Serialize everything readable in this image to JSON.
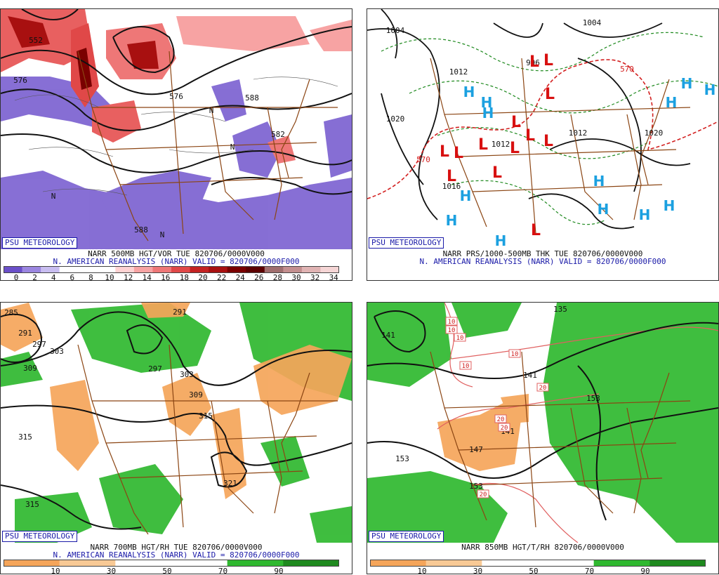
{
  "credit": "PSU METEOROLOGY",
  "panels": [
    {
      "line1": "NARR 500MB HGT/VOR TUE 820706/0000V000",
      "line2": "N. AMERICAN REANALYSIS (NARR) VALID = 820706/0000F000",
      "labels": [
        "552",
        "576",
        "576",
        "582",
        "588",
        "588",
        "N",
        "N",
        "N",
        "N"
      ],
      "scale_ticks": [
        "0",
        "2",
        "4",
        "6",
        "8",
        "10",
        "12",
        "14",
        "16",
        "18",
        "20",
        "22",
        "24",
        "26",
        "28",
        "30",
        "32",
        "34"
      ]
    },
    {
      "line1": "NARR PRS/1000-500MB THK TUE 820706/0000V000",
      "line2": "N. AMERICAN REANALYSIS (NARR) VALID = 820706/0000F000",
      "labels": [
        "1004",
        "1004",
        "1012",
        "1020",
        "1012",
        "1012",
        "1020",
        "1016",
        "996",
        "570",
        "570"
      ],
      "lows": 13,
      "highs": 14,
      "low_letter": "L",
      "high_letter": "H"
    },
    {
      "line1": "NARR 700MB HGT/RH TUE 820706/0000V000",
      "line2": "N. AMERICAN REANALYSIS (NARR) VALID = 820706/0000F000",
      "labels": [
        "285",
        "291",
        "297",
        "303",
        "309",
        "291",
        "297",
        "303",
        "309",
        "315",
        "315",
        "315",
        "321"
      ],
      "scale_ticks": [
        "10",
        "30",
        "50",
        "70",
        "90"
      ]
    },
    {
      "line1": "NARR 850MB HGT/T/RH 820706/0000V000",
      "labels": [
        "135",
        "141",
        "141",
        "147",
        "141",
        "153",
        "153",
        "153"
      ],
      "temp_labels": [
        "10",
        "10",
        "10",
        "10",
        "10",
        "20",
        "20",
        "20",
        "20"
      ],
      "scale_ticks": [
        "10",
        "30",
        "50",
        "70",
        "90"
      ]
    }
  ],
  "colors": {
    "vort_scale": [
      "#6a4fc9",
      "#9b86e0",
      "#c8bdf0",
      "#ffffff",
      "#ffffff",
      "#ffffff",
      "#ffd2d2",
      "#f7a3a3",
      "#ee7777",
      "#e04848",
      "#c42222",
      "#a81010",
      "#7a0000",
      "#5c0000",
      "#a06e6e",
      "#c48f8f",
      "#e0b3b3",
      "#f5d5d5"
    ],
    "rh_scale": [
      "#f5a55a",
      "#f8c995",
      "#ffffff",
      "#ffffff",
      "#2fb82f",
      "#1f8a1f"
    ],
    "border": "#8b4513"
  }
}
